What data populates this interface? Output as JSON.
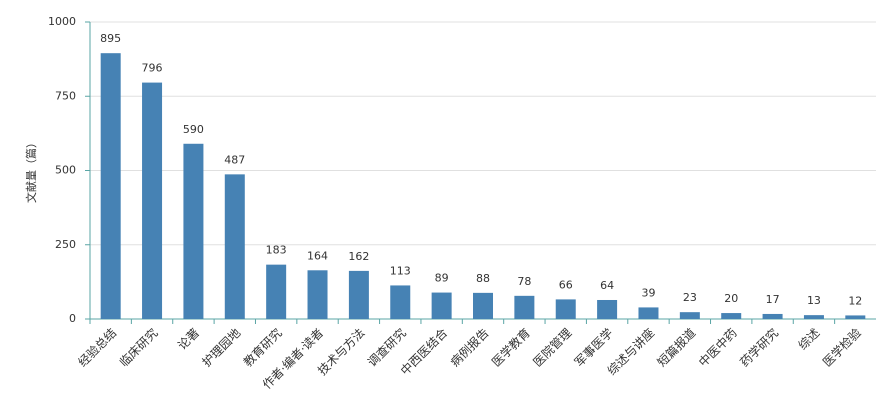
{
  "chart_data": {
    "type": "bar",
    "y_label": "文献量（篇）",
    "categories": [
      "经验总结",
      "临床研究",
      "论著",
      "护理园地",
      "教育研究",
      "作者·编者·读者",
      "技术与方法",
      "调查研究",
      "中西医结合",
      "病例报告",
      "医学教育",
      "医院管理",
      "军事医学",
      "综述与讲座",
      "短篇报道",
      "中医中药",
      "药学研究",
      "综述",
      "医学检验"
    ],
    "values": [
      895,
      796,
      590,
      487,
      183,
      164,
      162,
      113,
      89,
      88,
      78,
      66,
      64,
      39,
      23,
      20,
      17,
      13,
      12
    ],
    "color": "#4682b4",
    "ylim": [
      0,
      1000
    ],
    "yticks": [
      0,
      250,
      500,
      750,
      1000
    ],
    "grid": true
  }
}
